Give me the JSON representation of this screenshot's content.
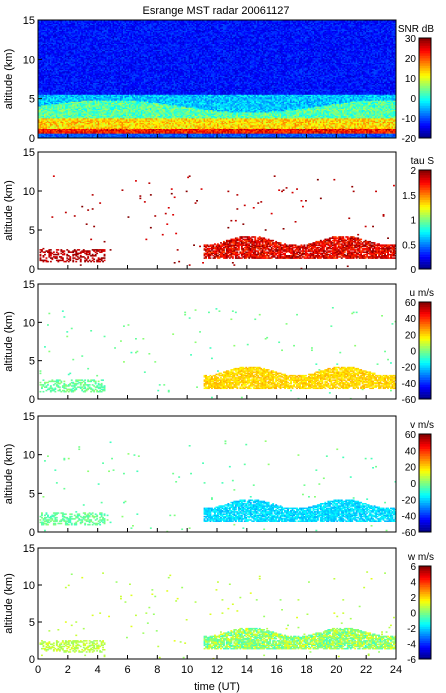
{
  "figure": {
    "title": "Esrange MST radar 20061127",
    "xlabel": "time (UT)"
  },
  "chart_data": [
    {
      "type": "heatmap",
      "ylabel": "altitude (km)",
      "ylim": [
        0,
        15
      ],
      "yticks": [
        0,
        5,
        10,
        15
      ],
      "xlim": [
        0,
        24
      ],
      "colorbar": {
        "label": "SNR dB",
        "range": [
          -20,
          30
        ],
        "ticks": [
          30,
          20,
          10,
          0,
          -10,
          -20
        ]
      }
    },
    {
      "type": "heatmap",
      "ylabel": "altitude (km)",
      "ylim": [
        0,
        15
      ],
      "yticks": [
        0,
        5,
        10,
        15
      ],
      "xlim": [
        0,
        24
      ],
      "colorbar": {
        "label": "tau S",
        "range": [
          0,
          2
        ],
        "ticks": [
          2,
          1.5,
          1,
          0.5,
          0
        ]
      }
    },
    {
      "type": "heatmap",
      "ylabel": "altitude (km)",
      "ylim": [
        0,
        15
      ],
      "yticks": [
        0,
        5,
        10,
        15
      ],
      "xlim": [
        0,
        24
      ],
      "colorbar": {
        "label": "u m/s",
        "range": [
          -60,
          60
        ],
        "ticks": [
          60,
          40,
          20,
          0,
          -20,
          -40,
          -60
        ]
      }
    },
    {
      "type": "heatmap",
      "ylabel": "altitude (km)",
      "ylim": [
        0,
        15
      ],
      "yticks": [
        0,
        5,
        10,
        15
      ],
      "xlim": [
        0,
        24
      ],
      "colorbar": {
        "label": "v m/s",
        "range": [
          -60,
          60
        ],
        "ticks": [
          60,
          40,
          20,
          0,
          -20,
          -40,
          -60
        ]
      }
    },
    {
      "type": "heatmap",
      "ylabel": "altitude (km)",
      "ylim": [
        0,
        15
      ],
      "yticks": [
        0,
        5,
        10,
        15
      ],
      "xlim": [
        0,
        24
      ],
      "xticks": [
        0,
        2,
        4,
        6,
        8,
        10,
        12,
        14,
        16,
        18,
        20,
        22,
        24
      ],
      "colorbar": {
        "label": "w m/s",
        "range": [
          -6,
          6
        ],
        "ticks": [
          6,
          4,
          2,
          0,
          -2,
          -4,
          -6
        ]
      }
    }
  ]
}
